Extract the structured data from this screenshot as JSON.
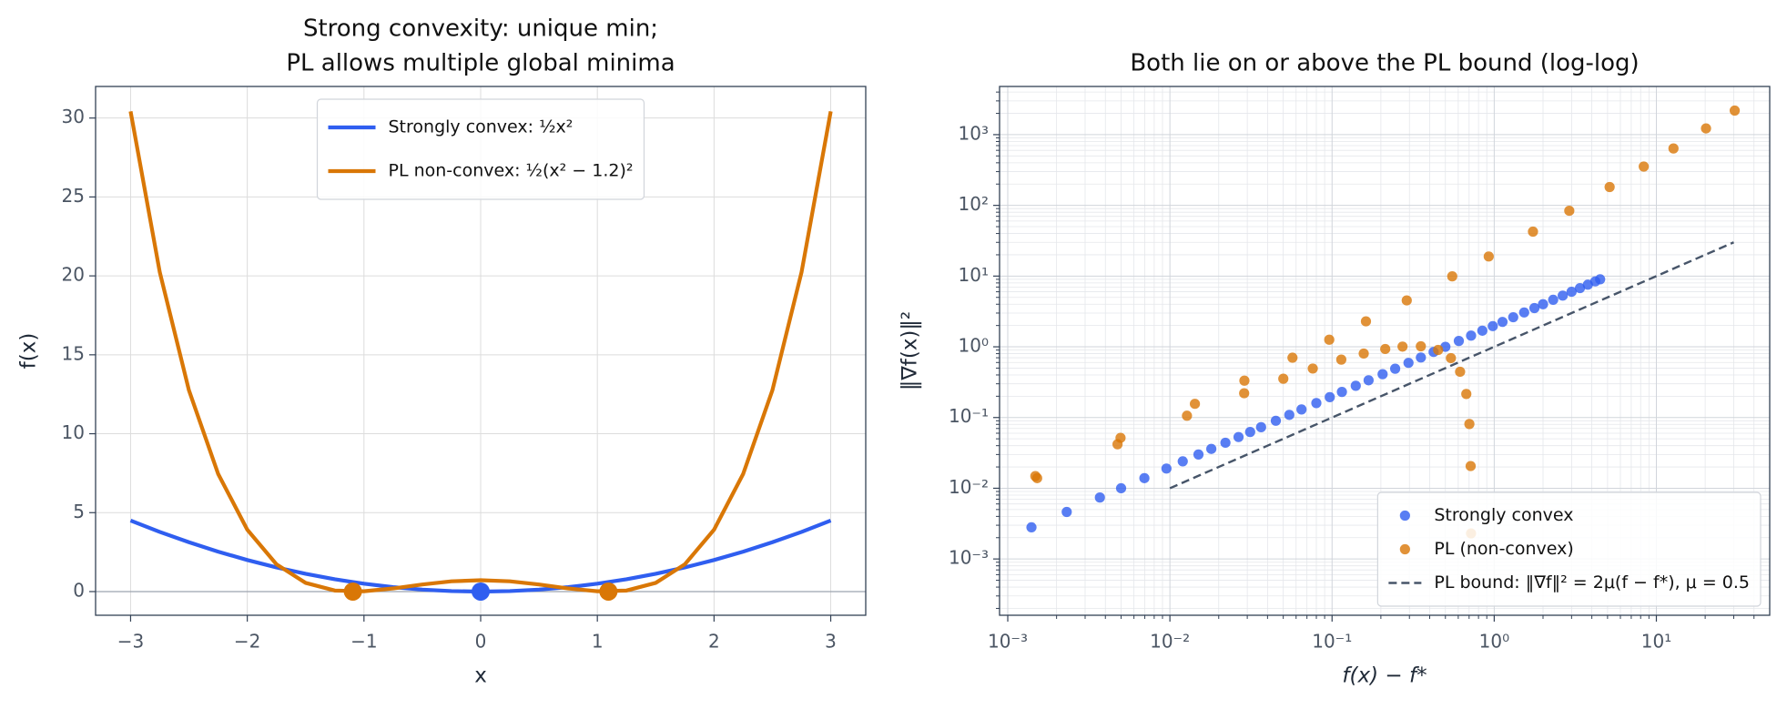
{
  "chart_data": [
    {
      "type": "line",
      "title": [
        "Strong convexity: unique min;",
        "PL allows multiple global minima"
      ],
      "xlabel": "x",
      "ylabel": "f(x)",
      "x": [
        -3,
        -2.75,
        -2.5,
        -2.25,
        -2,
        -1.75,
        -1.5,
        -1.25,
        -1,
        -0.75,
        -0.5,
        -0.25,
        0,
        0.25,
        0.5,
        0.75,
        1,
        1.25,
        1.5,
        1.75,
        2,
        2.25,
        2.5,
        2.75,
        3
      ],
      "series": [
        {
          "name": "Strongly convex: ½x²",
          "color": "#2f5ef0",
          "values": [
            4.5,
            3.78,
            3.125,
            2.53,
            2,
            1.53,
            1.125,
            0.78,
            0.5,
            0.28,
            0.125,
            0.03,
            0,
            0.03,
            0.125,
            0.28,
            0.5,
            0.78,
            1.125,
            1.53,
            2,
            2.53,
            3.125,
            3.78,
            4.5
          ],
          "points_x": [
            0
          ],
          "points_y": [
            0
          ]
        },
        {
          "name": "PL non-convex: ½(x² − 1.2)²",
          "color": "#d97706",
          "values": [
            30.42,
            20.24,
            12.75,
            7.46,
            3.92,
            1.73,
            0.55,
            0.066,
            0.02,
            0.2,
            0.45,
            0.65,
            0.72,
            0.65,
            0.45,
            0.2,
            0.02,
            0.066,
            0.55,
            1.73,
            3.92,
            7.46,
            12.75,
            20.24,
            30.42
          ],
          "points_x": [
            -1.095,
            1.095
          ],
          "points_y": [
            0,
            0
          ]
        }
      ],
      "hline": 0,
      "xlim": [
        -3.3,
        3.3
      ],
      "ylim": [
        -1.5,
        32
      ],
      "xticks": [
        {
          "value": -3,
          "label": "−3"
        },
        {
          "value": -2,
          "label": "−2"
        },
        {
          "value": -1,
          "label": "−1"
        },
        0,
        1,
        2,
        3
      ],
      "yticks": [
        0,
        5,
        10,
        15,
        20,
        25,
        30
      ],
      "grid": true,
      "legend": "upper center"
    },
    {
      "type": "scatter",
      "title": [
        "Both lie on or above the PL bound (log-log)"
      ],
      "xlabel": "f(x) − f*",
      "ylabel": "‖∇f(x)‖²",
      "xscale": "log",
      "yscale": "log",
      "series": [
        {
          "name": "Strongly convex",
          "color": "#2f5ef0",
          "x": [
            0.0014,
            0.00231,
            0.0037,
            0.005,
            0.00696,
            0.00952,
            0.012,
            0.015,
            0.018,
            0.022,
            0.0265,
            0.03125,
            0.0365,
            0.045,
            0.0545,
            0.0648,
            0.08,
            0.0968,
            0.115,
            0.14,
            0.168,
            0.205,
            0.245,
            0.296,
            0.353,
            0.423,
            0.5,
            0.605,
            0.72,
            0.845,
            0.98,
            1.125,
            1.31,
            1.53,
            1.77,
            2,
            2.31,
            2.645,
            3.0,
            3.38,
            3.78,
            4.2,
            4.5
          ],
          "values": [
            0.0028,
            0.00462,
            0.0074,
            0.01,
            0.0139,
            0.019,
            0.024,
            0.03,
            0.036,
            0.044,
            0.053,
            0.0625,
            0.073,
            0.09,
            0.109,
            0.13,
            0.16,
            0.194,
            0.23,
            0.281,
            0.336,
            0.41,
            0.49,
            0.593,
            0.706,
            0.846,
            1,
            1.21,
            1.44,
            1.69,
            1.96,
            2.25,
            2.62,
            3.06,
            3.53,
            4,
            4.62,
            5.29,
            6.0,
            6.76,
            7.56,
            8.41,
            9
          ]
        },
        {
          "name": "PL (non-convex)",
          "color": "#d97706",
          "x": [
            0.00148,
            0.00496,
            0.01426,
            0.0288,
            0.057,
            0.0961,
            0.1618,
            0.2888,
            0.551,
            0.925,
            1.734,
            2.904,
            5.15,
            8.36,
            12.75,
            20.24,
            30.42,
            0.001518,
            0.004753,
            0.01274,
            0.0287,
            0.05005,
            0.07605,
            0.114,
            0.1568,
            0.2128,
            0.272,
            0.3528,
            0.451,
            0.5408,
            0.616,
            0.6728,
            0.7028,
            0.7157,
            0.7195
          ],
          "values": [
            0.01485,
            0.0516,
            0.1562,
            0.332,
            0.701,
            1.26,
            2.29,
            4.53,
            9.92,
            18.94,
            42.5,
            83.9,
            181.7,
            354,
            637.6,
            1224.6,
            2190,
            0.0139,
            0.0419,
            0.106,
            0.2205,
            0.3538,
            0.4928,
            0.659,
            0.803,
            0.932,
            1.006,
            1.016,
            0.9025,
            0.692,
            0.4436,
            0.2153,
            0.081,
            0.0206,
            0.0023
          ]
        },
        {
          "name": "PL bound: ‖∇f‖² = 2μ(f − f*), μ = 0.5",
          "color": "#475569",
          "linestyle": "dashed",
          "x": [
            0.01,
            30
          ],
          "values": [
            0.01,
            30
          ]
        }
      ],
      "xlim": [
        0.00089,
        50
      ],
      "ylim": [
        0.00016,
        4800
      ],
      "xticks": [
        {
          "value": 0.001,
          "label": "10⁻³"
        },
        {
          "value": 0.01,
          "label": "10⁻²"
        },
        {
          "value": 0.1,
          "label": "10⁻¹"
        },
        {
          "value": 1,
          "label": "10⁰"
        },
        {
          "value": 10,
          "label": "10¹"
        }
      ],
      "yticks": [
        {
          "value": 0.001,
          "label": "10⁻³"
        },
        {
          "value": 0.01,
          "label": "10⁻²"
        },
        {
          "value": 0.1,
          "label": "10⁻¹"
        },
        {
          "value": 1,
          "label": "10⁰"
        },
        {
          "value": 10,
          "label": "10¹"
        },
        {
          "value": 100,
          "label": "10²"
        },
        {
          "value": 1000,
          "label": "10³"
        }
      ],
      "xminor": [
        0.002,
        0.003,
        0.004,
        0.005,
        0.006,
        0.007,
        0.008,
        0.009,
        0.02,
        0.03,
        0.04,
        0.05,
        0.06,
        0.07,
        0.08,
        0.09,
        0.2,
        0.3,
        0.4,
        0.5,
        0.6,
        0.7,
        0.8,
        0.9,
        2,
        3,
        4,
        5,
        6,
        7,
        8,
        9,
        20,
        30,
        40
      ],
      "yminor": [
        0.0002,
        0.0003,
        0.0004,
        0.0005,
        0.0006,
        0.0007,
        0.0008,
        0.0009,
        0.002,
        0.003,
        0.004,
        0.005,
        0.006,
        0.007,
        0.008,
        0.009,
        0.02,
        0.03,
        0.04,
        0.05,
        0.06,
        0.07,
        0.08,
        0.09,
        0.2,
        0.3,
        0.4,
        0.5,
        0.6,
        0.7,
        0.8,
        0.9,
        2,
        3,
        4,
        5,
        6,
        7,
        8,
        9,
        20,
        30,
        40,
        50,
        60,
        70,
        80,
        90,
        200,
        300,
        400,
        500,
        600,
        700,
        800,
        900,
        2000,
        3000,
        4000
      ],
      "grid": true,
      "legend": "lower right"
    }
  ]
}
